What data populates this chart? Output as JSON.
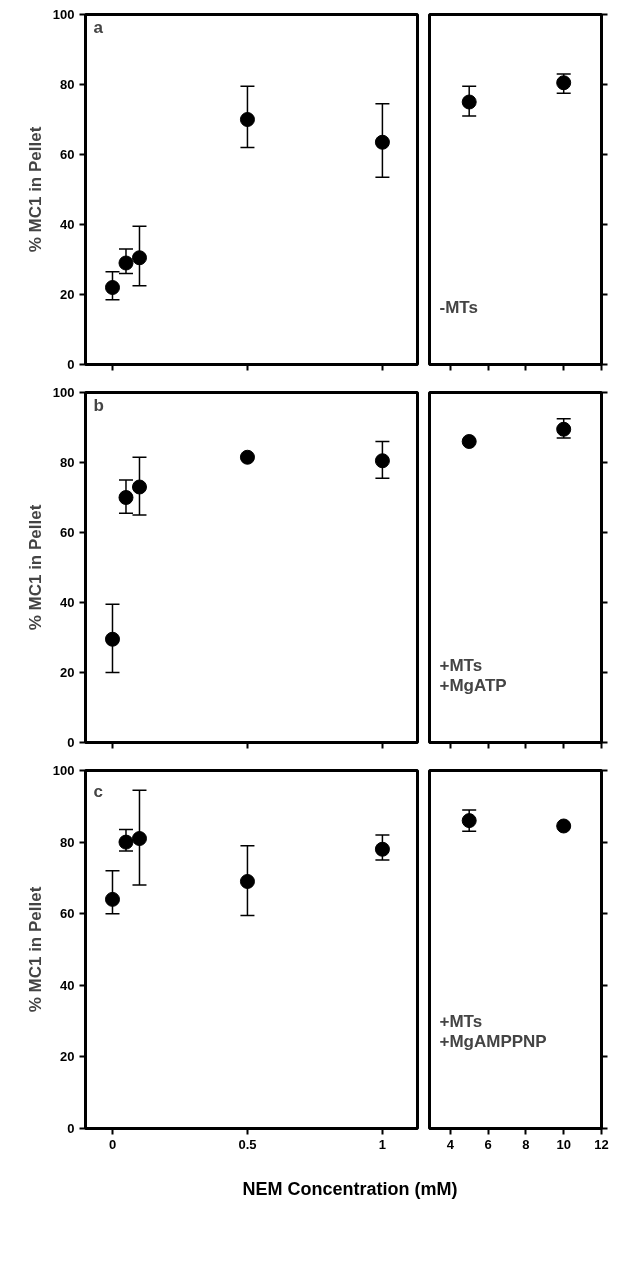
{
  "chart_data": [
    {
      "type": "scatter",
      "ylabel": "% MC1 in Pellet",
      "annotations": [
        "a"
      ],
      "tick_labels": "y",
      "marker": "circle",
      "grid": false,
      "xlim": [
        -0.1,
        1.13
      ],
      "xticks": [
        0,
        0.5,
        1
      ],
      "ylim": [
        0,
        100
      ],
      "yticks": [
        0,
        20,
        40,
        60,
        80,
        100
      ],
      "x": [
        0,
        0.05,
        0.1,
        0.5,
        1
      ],
      "series": [
        {
          "color": "#000000",
          "values": [
            22,
            29,
            30.5,
            70,
            63.5
          ],
          "errors": [
            [
              18.5,
              26.5
            ],
            [
              26,
              33
            ],
            [
              22.5,
              39.5
            ],
            [
              62,
              79.5
            ],
            [
              53.5,
              74.5
            ]
          ]
        }
      ]
    },
    {
      "type": "scatter",
      "annotations": [
        "-MTs"
      ],
      "tick_labels": false,
      "marker": "circle",
      "grid": false,
      "xlim": [
        2.9,
        12
      ],
      "xticks": [
        4,
        6,
        8,
        10,
        12
      ],
      "ylim": [
        0,
        100
      ],
      "yticks": [
        0,
        20,
        40,
        60,
        80,
        100
      ],
      "x": [
        5,
        10
      ],
      "series": [
        {
          "color": "#000000",
          "values": [
            75,
            80.5
          ],
          "errors": [
            [
              71,
              79.5
            ],
            [
              77.5,
              83
            ]
          ]
        }
      ]
    },
    {
      "type": "scatter",
      "ylabel": "% MC1 in Pellet",
      "annotations": [
        "b"
      ],
      "tick_labels": "y",
      "marker": "circle",
      "grid": false,
      "xlim": [
        -0.1,
        1.13
      ],
      "xticks": [
        0,
        0.5,
        1
      ],
      "ylim": [
        0,
        100
      ],
      "yticks": [
        0,
        20,
        40,
        60,
        80,
        100
      ],
      "x": [
        0,
        0.05,
        0.1,
        0.5,
        1
      ],
      "series": [
        {
          "color": "#000000",
          "values": [
            29.5,
            70,
            73,
            81.5,
            80.5
          ],
          "errors": [
            [
              20,
              39.5
            ],
            [
              65.5,
              75
            ],
            [
              65,
              81.5
            ],
            null,
            [
              75.5,
              86
            ]
          ]
        }
      ]
    },
    {
      "type": "scatter",
      "annotations": [
        "+MTs",
        "+MgATP"
      ],
      "tick_labels": false,
      "marker": "circle",
      "grid": false,
      "xlim": [
        2.9,
        12
      ],
      "xticks": [
        4,
        6,
        8,
        10,
        12
      ],
      "ylim": [
        0,
        100
      ],
      "yticks": [
        0,
        20,
        40,
        60,
        80,
        100
      ],
      "x": [
        5,
        10
      ],
      "series": [
        {
          "color": "#000000",
          "values": [
            86,
            89.5
          ],
          "errors": [
            null,
            [
              87,
              92.5
            ]
          ]
        }
      ]
    },
    {
      "type": "scatter",
      "ylabel": "% MC1 in Pellet",
      "xlabel": "NEM Concentration (mM)",
      "annotations": [
        "c"
      ],
      "marker": "circle",
      "grid": false,
      "xlim": [
        -0.1,
        1.13
      ],
      "xticks": [
        0,
        0.5,
        1
      ],
      "ylim": [
        0,
        100
      ],
      "yticks": [
        0,
        20,
        40,
        60,
        80,
        100
      ],
      "x": [
        0,
        0.05,
        0.1,
        0.5,
        1
      ],
      "series": [
        {
          "color": "#000000",
          "values": [
            64,
            80,
            81,
            69,
            78
          ],
          "errors": [
            [
              60,
              72
            ],
            [
              77.5,
              83.5
            ],
            [
              68,
              94.5
            ],
            [
              59.5,
              79
            ],
            [
              75,
              82
            ]
          ]
        }
      ]
    },
    {
      "type": "scatter",
      "annotations": [
        "+MTs",
        "+MgAMPPNP"
      ],
      "tick_labels": "x",
      "marker": "circle",
      "grid": false,
      "xlim": [
        2.9,
        12
      ],
      "xticks": [
        4,
        6,
        8,
        10,
        12
      ],
      "ylim": [
        0,
        100
      ],
      "yticks": [
        0,
        20,
        40,
        60,
        80,
        100
      ],
      "x": [
        5,
        10
      ],
      "series": [
        {
          "color": "#000000",
          "values": [
            86,
            84.5
          ],
          "errors": [
            [
              83,
              89
            ],
            null
          ]
        }
      ]
    }
  ]
}
